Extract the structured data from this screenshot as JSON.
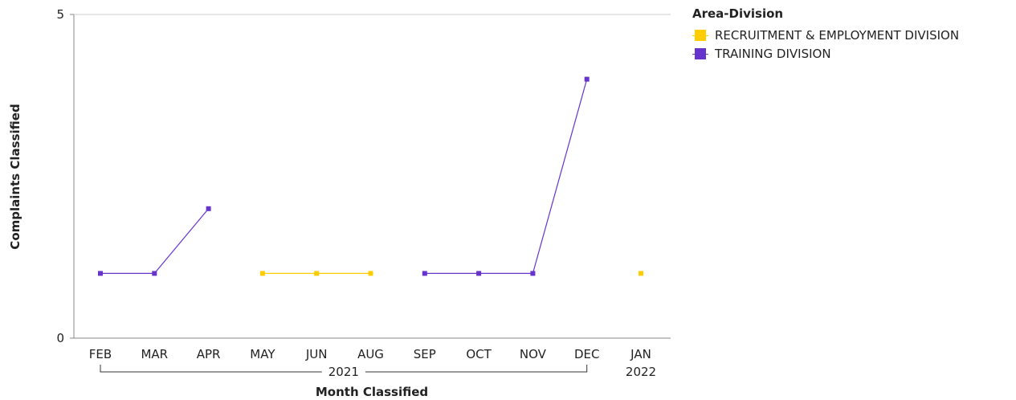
{
  "chart_data": {
    "type": "line",
    "xlabel": "Month Classified",
    "ylabel": "Complaints Classified",
    "ylim": [
      0,
      5
    ],
    "y_ticks": [
      "0",
      "5"
    ],
    "categories": [
      "FEB",
      "MAR",
      "APR",
      "MAY",
      "JUN",
      "AUG",
      "SEP",
      "OCT",
      "NOV",
      "DEC",
      "JAN"
    ],
    "year_groups": [
      {
        "label": "2021",
        "from": 0,
        "to": 9
      },
      {
        "label": "2022",
        "from": 10,
        "to": 10
      }
    ],
    "series": [
      {
        "name": "RECRUITMENT & EMPLOYMENT DIVISION",
        "color": "#FFCC00",
        "values": [
          null,
          null,
          null,
          1,
          1,
          1,
          null,
          null,
          null,
          null,
          1
        ]
      },
      {
        "name": "TRAINING DIVISION",
        "color": "#6633CC",
        "values": [
          1,
          1,
          2,
          null,
          null,
          null,
          1,
          1,
          1,
          4,
          null
        ]
      }
    ],
    "legend_title": "Area-Division",
    "legend_position": "top-right",
    "grid": false
  }
}
